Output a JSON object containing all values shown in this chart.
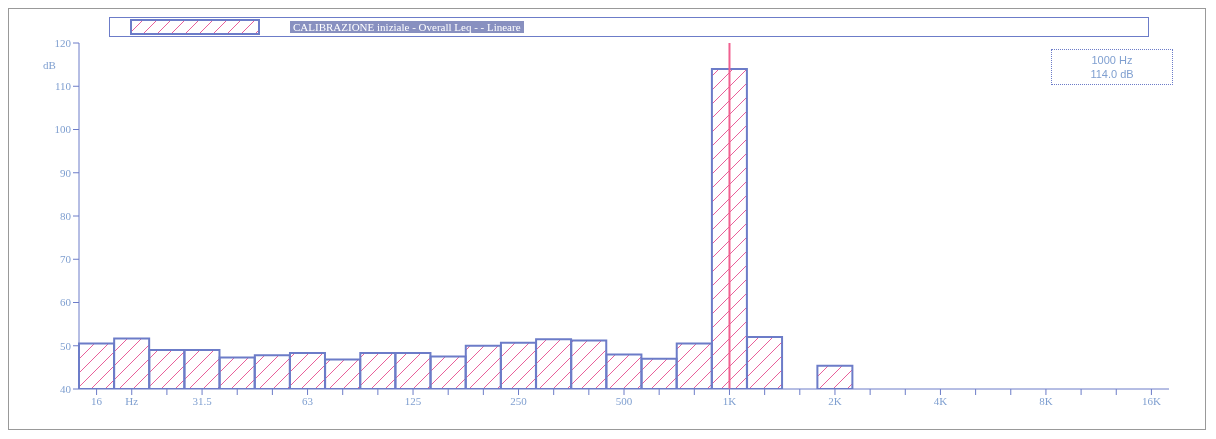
{
  "chart_data": {
    "type": "bar",
    "categories": [
      "16",
      "Hz",
      null,
      "31.5",
      null,
      null,
      "63",
      null,
      null,
      "125",
      null,
      null,
      "250",
      null,
      null,
      "500",
      null,
      null,
      "1K",
      null,
      null,
      "2K",
      null,
      null,
      "4K",
      null,
      null,
      "8K",
      null,
      null,
      "16K"
    ],
    "series": [
      {
        "name": "CALIBRAZIONE iniziale - Overall Leq - - Lineare",
        "color": "#6c7cc8",
        "values": [
          50.5,
          51.7,
          49,
          49,
          47.3,
          47.8,
          48.3,
          46.8,
          48.3,
          48.3,
          47.5,
          50,
          50.7,
          51.5,
          51.2,
          48,
          47,
          50.5,
          114,
          52,
          40,
          45.4,
          40,
          40,
          40,
          40,
          40,
          40,
          40,
          40,
          40
        ]
      }
    ],
    "ylabel": "dB",
    "ylim": [
      40,
      120
    ],
    "yticks": [
      40,
      50,
      60,
      70,
      80,
      90,
      100,
      110,
      120
    ],
    "ref_lines": [
      {
        "axis": "x",
        "value": "1K",
        "color": "#f06090"
      }
    ],
    "annotations": [
      "1000 Hz\n114.0 dB"
    ],
    "legend": "top",
    "grid": false
  }
}
